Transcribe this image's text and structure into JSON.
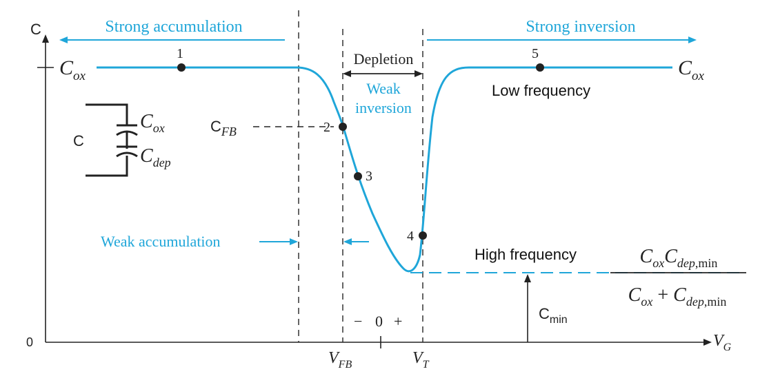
{
  "colors": {
    "curve": "#1fa6d9",
    "ink": "#222222",
    "background": "#ffffff"
  },
  "axes": {
    "y_label": "C",
    "x_label_main": "V",
    "x_label_sub": "G",
    "origin_label": "0"
  },
  "cox": {
    "left_main": "C",
    "left_sub": "ox",
    "right_main": "C",
    "right_sub": "ox"
  },
  "regions": {
    "strong_accumulation": "Strong accumulation",
    "strong_inversion": "Strong inversion",
    "depletion": "Depletion",
    "weak_inversion_1": "Weak",
    "weak_inversion_2": "inversion",
    "weak_accumulation": "Weak accumulation"
  },
  "points": {
    "p1": "1",
    "p2": "2",
    "p3": "3",
    "p4": "4",
    "p5": "5"
  },
  "curve_labels": {
    "low_frequency": "Low frequency",
    "high_frequency": "High frequency"
  },
  "cfb": {
    "main": "C",
    "sub": "FB"
  },
  "cmin": {
    "main": "C",
    "sub": "min"
  },
  "vfb": {
    "main": "V",
    "sub": "FB"
  },
  "vt": {
    "main": "V",
    "sub": "T"
  },
  "polarity": {
    "minus": "−",
    "zero": "0",
    "plus": "+"
  },
  "circuit": {
    "c_label": "C",
    "cox_main": "C",
    "cox_sub": "ox",
    "cdep_main": "C",
    "cdep_sub": "dep"
  },
  "formula": {
    "num_c1": "C",
    "num_ox": "ox",
    "num_c2": "C",
    "num_dep": "dep",
    "num_min": ",min",
    "den_c1": "C",
    "den_ox": "ox",
    "den_plus": " + ",
    "den_c2": "C",
    "den_dep": "dep",
    "den_min": ",min"
  }
}
